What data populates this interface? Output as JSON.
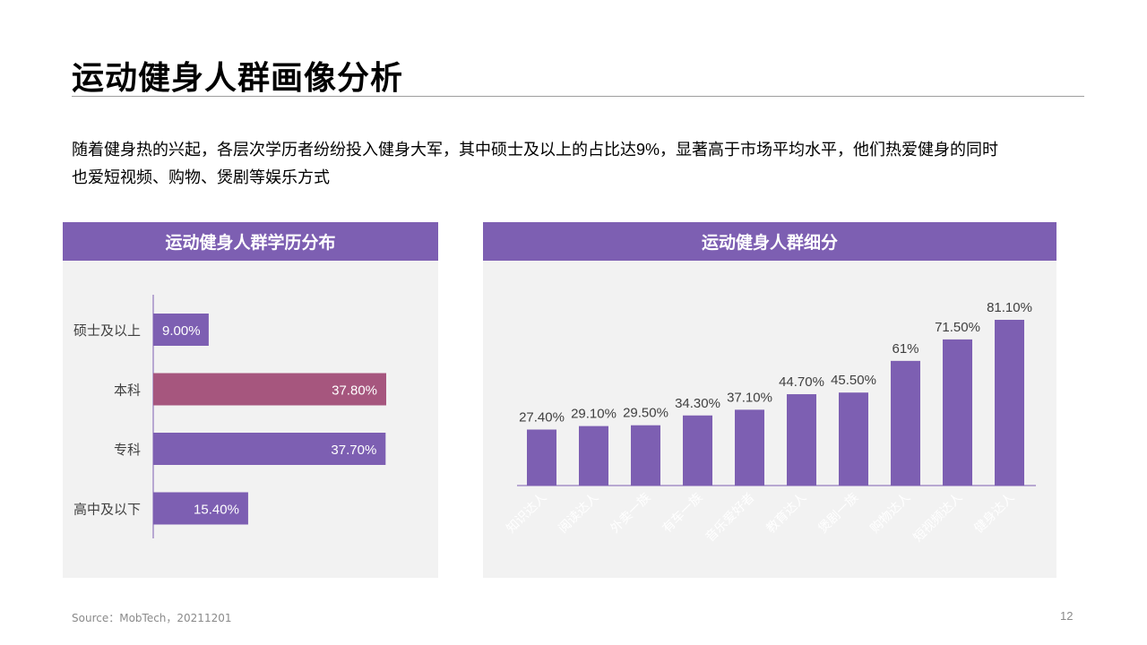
{
  "title": "运动健身人群画像分析",
  "intro": {
    "line1": "随着健身热的兴起，各层次学历者纷纷投入健身大军，其中硕士及以上的占比达9%，显著高于市场平均水平，他们热爱健身的同时",
    "line2": "也爱短视频、购物、煲剧等娱乐方式"
  },
  "footer": {
    "source": "Source：MobTech，20211201",
    "page": "12"
  },
  "colors": {
    "accent": "#7d5fb2",
    "highlight": "#a6567e",
    "panel_bg": "#f2f2f2"
  },
  "chart_data": [
    {
      "type": "bar",
      "orientation": "horizontal",
      "title": "运动健身人群学历分布",
      "categories": [
        "硕士及以上",
        "本科",
        "专科",
        "高中及以下"
      ],
      "values": [
        9.0,
        37.8,
        37.7,
        15.4
      ],
      "labels": [
        "9.00%",
        "37.80%",
        "37.70%",
        "15.40%"
      ],
      "highlight_index": 1,
      "xlim": [
        0,
        40
      ],
      "grid": false
    },
    {
      "type": "bar",
      "orientation": "vertical",
      "title": "运动健身人群细分",
      "categories": [
        "知识达人",
        "阅读达人",
        "外卖一族",
        "有车一族",
        "音乐爱好者",
        "教育达人",
        "煲剧一族",
        "购物达人",
        "短视频达人",
        "健身达人"
      ],
      "values": [
        27.4,
        29.1,
        29.5,
        34.3,
        37.1,
        44.7,
        45.5,
        61.0,
        71.5,
        81.1
      ],
      "labels": [
        "27.40%",
        "29.10%",
        "29.50%",
        "34.30%",
        "37.10%",
        "44.70%",
        "45.50%",
        "61%",
        "71.50%",
        "81.10%"
      ],
      "ylim": [
        0,
        100
      ],
      "grid": false
    }
  ]
}
